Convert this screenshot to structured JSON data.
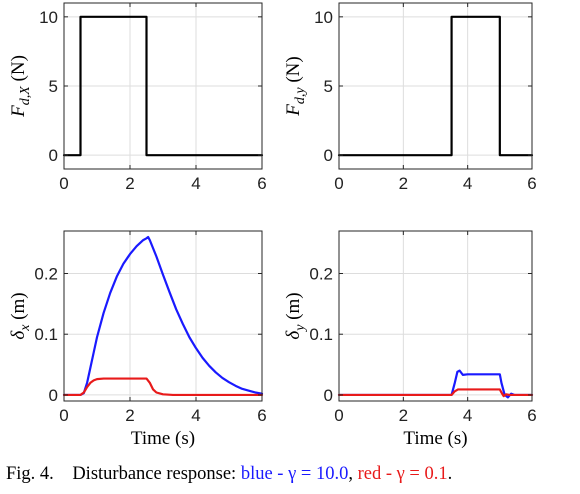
{
  "chart_data": [
    {
      "type": "line",
      "panel": "top-left",
      "ylabel_main": "F",
      "ylabel_sub": "d,X",
      "ylabel_unit": " (N)",
      "xlim": [
        0,
        6
      ],
      "ylim": [
        -1,
        11
      ],
      "xticks": [
        0,
        2,
        4,
        6
      ],
      "yticks": [
        0,
        5,
        10
      ],
      "xticklabels": [
        "0",
        "2",
        "4",
        "6"
      ],
      "yticklabels": [
        "0",
        "5",
        "10"
      ],
      "grid": true,
      "series": [
        {
          "color": "#000000",
          "width": 2.2,
          "points": [
            [
              0,
              0
            ],
            [
              0.5,
              0
            ],
            [
              0.5,
              10
            ],
            [
              2.5,
              10
            ],
            [
              2.5,
              0
            ],
            [
              6,
              0
            ]
          ]
        }
      ]
    },
    {
      "type": "line",
      "panel": "top-right",
      "ylabel_main": "F",
      "ylabel_sub": "d,y",
      "ylabel_unit": " (N)",
      "xlim": [
        0,
        6
      ],
      "ylim": [
        -1,
        11
      ],
      "xticks": [
        0,
        2,
        4,
        6
      ],
      "yticks": [
        0,
        5,
        10
      ],
      "xticklabels": [
        "0",
        "2",
        "4",
        "6"
      ],
      "yticklabels": [
        "0",
        "5",
        "10"
      ],
      "grid": true,
      "series": [
        {
          "color": "#000000",
          "width": 2.2,
          "points": [
            [
              0,
              0
            ],
            [
              3.5,
              0
            ],
            [
              3.5,
              10
            ],
            [
              5,
              10
            ],
            [
              5,
              0
            ],
            [
              6,
              0
            ]
          ]
        }
      ]
    },
    {
      "type": "line",
      "panel": "bottom-left",
      "ylabel_main": "δ",
      "ylabel_sub": "x",
      "ylabel_unit": " (m)",
      "xlabel": "Time (s)",
      "xlim": [
        0,
        6
      ],
      "ylim": [
        -0.01,
        0.27
      ],
      "xticks": [
        0,
        2,
        4,
        6
      ],
      "yticks": [
        0,
        0.1,
        0.2
      ],
      "xticklabels": [
        "0",
        "2",
        "4",
        "6"
      ],
      "yticklabels": [
        "0",
        "0.1",
        "0.2"
      ],
      "grid": true,
      "series": [
        {
          "color": "#1a1aff",
          "width": 2.2,
          "points": [
            [
              0,
              0
            ],
            [
              0.5,
              0
            ],
            [
              0.6,
              0.003
            ],
            [
              0.7,
              0.02
            ],
            [
              0.8,
              0.045
            ],
            [
              0.9,
              0.07
            ],
            [
              1.0,
              0.095
            ],
            [
              1.2,
              0.135
            ],
            [
              1.4,
              0.168
            ],
            [
              1.6,
              0.195
            ],
            [
              1.8,
              0.216
            ],
            [
              2.0,
              0.232
            ],
            [
              2.2,
              0.245
            ],
            [
              2.4,
              0.255
            ],
            [
              2.5,
              0.258
            ],
            [
              2.55,
              0.26
            ],
            [
              2.6,
              0.255
            ],
            [
              2.8,
              0.228
            ],
            [
              3.0,
              0.198
            ],
            [
              3.2,
              0.169
            ],
            [
              3.4,
              0.141
            ],
            [
              3.6,
              0.117
            ],
            [
              3.8,
              0.095
            ],
            [
              4.0,
              0.077
            ],
            [
              4.2,
              0.061
            ],
            [
              4.4,
              0.048
            ],
            [
              4.6,
              0.037
            ],
            [
              4.8,
              0.028
            ],
            [
              5.0,
              0.021
            ],
            [
              5.2,
              0.015
            ],
            [
              5.4,
              0.01
            ],
            [
              5.6,
              0.007
            ],
            [
              5.8,
              0.004
            ],
            [
              6.0,
              0.002
            ]
          ]
        },
        {
          "color": "#e81a1a",
          "width": 2.2,
          "points": [
            [
              0,
              0
            ],
            [
              0.5,
              0
            ],
            [
              0.6,
              0.004
            ],
            [
              0.7,
              0.013
            ],
            [
              0.8,
              0.02
            ],
            [
              0.9,
              0.024
            ],
            [
              1.0,
              0.026
            ],
            [
              1.2,
              0.027
            ],
            [
              2.5,
              0.027
            ],
            [
              2.6,
              0.02
            ],
            [
              2.7,
              0.009
            ],
            [
              2.8,
              0.004
            ],
            [
              3.0,
              0.001
            ],
            [
              3.3,
              0
            ],
            [
              6.0,
              0
            ]
          ]
        }
      ]
    },
    {
      "type": "line",
      "panel": "bottom-right",
      "ylabel_main": "δ",
      "ylabel_sub": "y",
      "ylabel_unit": " (m)",
      "xlabel": "Time (s)",
      "xlim": [
        0,
        6
      ],
      "ylim": [
        -0.01,
        0.27
      ],
      "xticks": [
        0,
        2,
        4,
        6
      ],
      "yticks": [
        0,
        0.1,
        0.2
      ],
      "xticklabels": [
        "0",
        "2",
        "4",
        "6"
      ],
      "yticklabels": [
        "0",
        "0.1",
        "0.2"
      ],
      "grid": true,
      "series": [
        {
          "color": "#1a1aff",
          "width": 2.2,
          "points": [
            [
              0,
              0
            ],
            [
              3.5,
              0
            ],
            [
              3.6,
              0.02
            ],
            [
              3.68,
              0.038
            ],
            [
              3.75,
              0.04
            ],
            [
              3.85,
              0.033
            ],
            [
              4.0,
              0.034
            ],
            [
              4.5,
              0.034
            ],
            [
              5.0,
              0.034
            ],
            [
              5.05,
              0.02
            ],
            [
              5.15,
              0
            ],
            [
              5.25,
              -0.004
            ],
            [
              5.35,
              0.002
            ],
            [
              5.45,
              0
            ],
            [
              6.0,
              0
            ]
          ]
        },
        {
          "color": "#e81a1a",
          "width": 2.2,
          "points": [
            [
              0,
              0
            ],
            [
              3.5,
              0
            ],
            [
              3.6,
              0.006
            ],
            [
              3.7,
              0.009
            ],
            [
              4.0,
              0.009
            ],
            [
              4.9,
              0.009
            ],
            [
              5.0,
              0.009
            ],
            [
              5.05,
              0.004
            ],
            [
              5.12,
              -0.002
            ],
            [
              5.2,
              0.001
            ],
            [
              5.3,
              0
            ],
            [
              6.0,
              0
            ]
          ]
        }
      ]
    }
  ],
  "caption": {
    "fig": "Fig. 4.",
    "text": "Disturbance response:",
    "blue_label": "blue - γ = 10.0",
    "sep": ",",
    "red_label": "red - γ = 0.1",
    "end": "."
  }
}
